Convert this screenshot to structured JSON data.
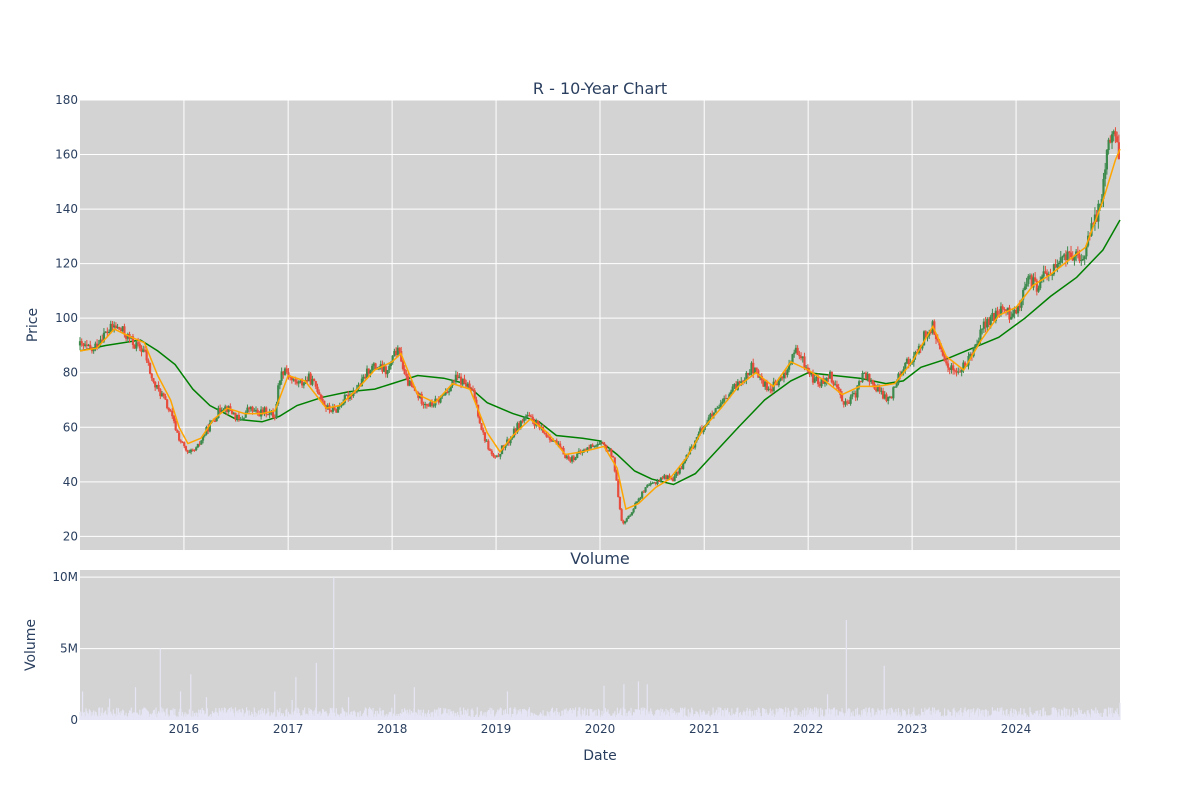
{
  "chart_data": [
    {
      "type": "candlestick",
      "title": "R - 10-Year Chart",
      "xlabel": "",
      "ylabel": "Price",
      "ylim": [
        15,
        180
      ],
      "yticks": [
        20,
        40,
        60,
        80,
        100,
        120,
        140,
        160,
        180
      ],
      "xlim": [
        "2015-01-01",
        "2024-12-31"
      ],
      "xticks": [
        "2016",
        "2017",
        "2018",
        "2019",
        "2020",
        "2021",
        "2022",
        "2023",
        "2024"
      ],
      "grid": true,
      "legend": "none",
      "colors": {
        "up": "#3d8a4d",
        "down": "#e74c3c",
        "ma_short": "#ffa500",
        "ma_long": "#008000",
        "background": "#d3d3d3",
        "grid": "#ffffff"
      },
      "price_path": [
        [
          "2015-01-01",
          90
        ],
        [
          "2015-02-15",
          88
        ],
        [
          "2015-03-15",
          93
        ],
        [
          "2015-05-01",
          97
        ],
        [
          "2015-06-01",
          95
        ],
        [
          "2015-07-15",
          90
        ],
        [
          "2015-08-15",
          88
        ],
        [
          "2015-09-15",
          76
        ],
        [
          "2015-10-15",
          72
        ],
        [
          "2015-11-15",
          65
        ],
        [
          "2015-12-15",
          56
        ],
        [
          "2016-01-15",
          50
        ],
        [
          "2016-02-15",
          52
        ],
        [
          "2016-03-15",
          58
        ],
        [
          "2016-04-15",
          63
        ],
        [
          "2016-05-15",
          68
        ],
        [
          "2016-06-15",
          66
        ],
        [
          "2016-07-15",
          62
        ],
        [
          "2016-08-15",
          67
        ],
        [
          "2016-09-15",
          65
        ],
        [
          "2016-10-15",
          66
        ],
        [
          "2016-11-15",
          64
        ],
        [
          "2016-12-01",
          78
        ],
        [
          "2016-12-20",
          82
        ],
        [
          "2017-01-15",
          77
        ],
        [
          "2017-02-15",
          76
        ],
        [
          "2017-03-15",
          78
        ],
        [
          "2017-04-15",
          74
        ],
        [
          "2017-05-15",
          67
        ],
        [
          "2017-06-15",
          66
        ],
        [
          "2017-07-15",
          70
        ],
        [
          "2017-08-15",
          73
        ],
        [
          "2017-09-15",
          76
        ],
        [
          "2017-10-15",
          82
        ],
        [
          "2017-11-15",
          82
        ],
        [
          "2017-12-15",
          80
        ],
        [
          "2018-01-15",
          88
        ],
        [
          "2018-02-01",
          86
        ],
        [
          "2018-02-15",
          78
        ],
        [
          "2018-03-15",
          74
        ],
        [
          "2018-04-15",
          70
        ],
        [
          "2018-05-15",
          68
        ],
        [
          "2018-06-15",
          70
        ],
        [
          "2018-07-15",
          74
        ],
        [
          "2018-08-15",
          78
        ],
        [
          "2018-09-15",
          76
        ],
        [
          "2018-10-15",
          72
        ],
        [
          "2018-11-15",
          58
        ],
        [
          "2018-12-15",
          50
        ],
        [
          "2019-01-01",
          48
        ],
        [
          "2019-01-20",
          52
        ],
        [
          "2019-02-15",
          55
        ],
        [
          "2019-03-15",
          60
        ],
        [
          "2019-04-15",
          64
        ],
        [
          "2019-05-15",
          62
        ],
        [
          "2019-06-15",
          58
        ],
        [
          "2019-07-15",
          56
        ],
        [
          "2019-08-15",
          52
        ],
        [
          "2019-09-15",
          48
        ],
        [
          "2019-10-15",
          50
        ],
        [
          "2019-11-15",
          52
        ],
        [
          "2019-12-15",
          54
        ],
        [
          "2020-01-15",
          53
        ],
        [
          "2020-02-15",
          50
        ],
        [
          "2020-03-01",
          38
        ],
        [
          "2020-03-20",
          24
        ],
        [
          "2020-04-15",
          28
        ],
        [
          "2020-05-15",
          34
        ],
        [
          "2020-06-15",
          38
        ],
        [
          "2020-07-15",
          40
        ],
        [
          "2020-08-15",
          42
        ],
        [
          "2020-09-15",
          41
        ],
        [
          "2020-10-15",
          46
        ],
        [
          "2020-11-15",
          52
        ],
        [
          "2020-12-15",
          58
        ],
        [
          "2021-01-15",
          63
        ],
        [
          "2021-02-15",
          66
        ],
        [
          "2021-03-15",
          70
        ],
        [
          "2021-04-15",
          74
        ],
        [
          "2021-05-15",
          78
        ],
        [
          "2021-06-15",
          82
        ],
        [
          "2021-07-15",
          78
        ],
        [
          "2021-08-15",
          74
        ],
        [
          "2021-09-15",
          76
        ],
        [
          "2021-10-15",
          80
        ],
        [
          "2021-11-15",
          88
        ],
        [
          "2021-12-15",
          84
        ],
        [
          "2022-01-15",
          78
        ],
        [
          "2022-02-15",
          76
        ],
        [
          "2022-03-15",
          80
        ],
        [
          "2022-04-15",
          74
        ],
        [
          "2022-05-15",
          68
        ],
        [
          "2022-06-15",
          72
        ],
        [
          "2022-07-15",
          80
        ],
        [
          "2022-08-15",
          76
        ],
        [
          "2022-09-15",
          72
        ],
        [
          "2022-10-15",
          70
        ],
        [
          "2022-11-15",
          80
        ],
        [
          "2022-12-15",
          84
        ],
        [
          "2023-01-15",
          86
        ],
        [
          "2023-02-15",
          94
        ],
        [
          "2023-03-15",
          97
        ],
        [
          "2023-04-15",
          86
        ],
        [
          "2023-05-15",
          82
        ],
        [
          "2023-06-15",
          80
        ],
        [
          "2023-07-15",
          84
        ],
        [
          "2023-08-15",
          92
        ],
        [
          "2023-09-15",
          98
        ],
        [
          "2023-10-15",
          100
        ],
        [
          "2023-11-15",
          104
        ],
        [
          "2023-12-15",
          100
        ],
        [
          "2024-01-15",
          106
        ],
        [
          "2024-02-15",
          114
        ],
        [
          "2024-03-15",
          112
        ],
        [
          "2024-04-15",
          116
        ],
        [
          "2024-05-15",
          118
        ],
        [
          "2024-06-15",
          122
        ],
        [
          "2024-07-15",
          124
        ],
        [
          "2024-08-15",
          120
        ],
        [
          "2024-09-15",
          130
        ],
        [
          "2024-10-15",
          140
        ],
        [
          "2024-11-01",
          148
        ],
        [
          "2024-11-15",
          162
        ],
        [
          "2024-12-01",
          170
        ],
        [
          "2024-12-15",
          165
        ],
        [
          "2024-12-31",
          158
        ]
      ],
      "ma_short_path": [
        [
          "2015-01-01",
          88
        ],
        [
          "2015-03-01",
          89
        ],
        [
          "2015-05-01",
          96
        ],
        [
          "2015-07-01",
          93
        ],
        [
          "2015-08-15",
          91
        ],
        [
          "2015-10-01",
          79
        ],
        [
          "2015-11-15",
          70
        ],
        [
          "2015-12-15",
          60
        ],
        [
          "2016-01-15",
          54
        ],
        [
          "2016-03-01",
          56
        ],
        [
          "2016-04-15",
          63
        ],
        [
          "2016-06-01",
          67
        ],
        [
          "2016-08-01",
          65
        ],
        [
          "2016-10-01",
          65
        ],
        [
          "2016-11-15",
          66
        ],
        [
          "2017-01-01",
          79
        ],
        [
          "2017-03-01",
          77
        ],
        [
          "2017-05-15",
          67
        ],
        [
          "2017-07-01",
          68
        ],
        [
          "2017-09-01",
          74
        ],
        [
          "2017-11-01",
          81
        ],
        [
          "2018-01-01",
          84
        ],
        [
          "2018-02-01",
          87
        ],
        [
          "2018-04-01",
          72
        ],
        [
          "2018-06-01",
          69
        ],
        [
          "2018-08-01",
          76
        ],
        [
          "2018-10-01",
          74
        ],
        [
          "2018-12-01",
          58
        ],
        [
          "2019-01-15",
          51
        ],
        [
          "2019-03-01",
          57
        ],
        [
          "2019-05-01",
          63
        ],
        [
          "2019-07-01",
          58
        ],
        [
          "2019-09-01",
          50
        ],
        [
          "2019-11-01",
          51
        ],
        [
          "2020-01-15",
          53
        ],
        [
          "2020-03-01",
          45
        ],
        [
          "2020-04-01",
          30
        ],
        [
          "2020-05-15",
          32
        ],
        [
          "2020-07-15",
          38
        ],
        [
          "2020-09-01",
          41
        ],
        [
          "2020-11-01",
          49
        ],
        [
          "2021-01-01",
          60
        ],
        [
          "2021-03-01",
          67
        ],
        [
          "2021-05-01",
          75
        ],
        [
          "2021-07-01",
          80
        ],
        [
          "2021-09-01",
          75
        ],
        [
          "2021-11-01",
          84
        ],
        [
          "2022-01-01",
          81
        ],
        [
          "2022-03-01",
          77
        ],
        [
          "2022-05-01",
          72
        ],
        [
          "2022-07-01",
          75
        ],
        [
          "2022-09-01",
          75
        ],
        [
          "2022-11-01",
          76
        ],
        [
          "2023-01-01",
          84
        ],
        [
          "2023-03-15",
          97
        ],
        [
          "2023-05-01",
          86
        ],
        [
          "2023-07-01",
          81
        ],
        [
          "2023-09-01",
          92
        ],
        [
          "2023-11-01",
          101
        ],
        [
          "2024-01-01",
          104
        ],
        [
          "2024-03-01",
          112
        ],
        [
          "2024-05-01",
          116
        ],
        [
          "2024-07-01",
          121
        ],
        [
          "2024-09-01",
          126
        ],
        [
          "2024-11-01",
          143
        ],
        [
          "2024-12-15",
          158
        ],
        [
          "2024-12-31",
          162
        ]
      ],
      "ma_long_path": [
        [
          "2015-01-01",
          88
        ],
        [
          "2015-04-01",
          90
        ],
        [
          "2015-08-01",
          92
        ],
        [
          "2015-10-01",
          88
        ],
        [
          "2015-12-01",
          83
        ],
        [
          "2016-02-01",
          74
        ],
        [
          "2016-04-01",
          68
        ],
        [
          "2016-07-01",
          63
        ],
        [
          "2016-10-01",
          62
        ],
        [
          "2016-12-01",
          64
        ],
        [
          "2017-02-01",
          68
        ],
        [
          "2017-05-01",
          71
        ],
        [
          "2017-08-01",
          73
        ],
        [
          "2017-11-01",
          74
        ],
        [
          "2018-01-01",
          76
        ],
        [
          "2018-04-01",
          79
        ],
        [
          "2018-07-01",
          78
        ],
        [
          "2018-09-15",
          76
        ],
        [
          "2018-12-01",
          69
        ],
        [
          "2019-03-01",
          65
        ],
        [
          "2019-06-01",
          62
        ],
        [
          "2019-08-01",
          57
        ],
        [
          "2019-11-01",
          56
        ],
        [
          "2020-01-01",
          55
        ],
        [
          "2020-03-01",
          50
        ],
        [
          "2020-05-01",
          44
        ],
        [
          "2020-07-01",
          41
        ],
        [
          "2020-09-15",
          39
        ],
        [
          "2020-12-01",
          43
        ],
        [
          "2021-02-01",
          50
        ],
        [
          "2021-05-01",
          60
        ],
        [
          "2021-08-01",
          70
        ],
        [
          "2021-11-01",
          77
        ],
        [
          "2022-01-01",
          80
        ],
        [
          "2022-04-01",
          79
        ],
        [
          "2022-07-01",
          78
        ],
        [
          "2022-10-01",
          76
        ],
        [
          "2022-12-01",
          77
        ],
        [
          "2023-02-01",
          82
        ],
        [
          "2023-05-01",
          85
        ],
        [
          "2023-08-01",
          89
        ],
        [
          "2023-11-01",
          93
        ],
        [
          "2024-02-01",
          100
        ],
        [
          "2024-05-01",
          108
        ],
        [
          "2024-08-01",
          115
        ],
        [
          "2024-11-01",
          125
        ],
        [
          "2024-12-31",
          136
        ]
      ]
    },
    {
      "type": "bar",
      "title": "Volume",
      "xlabel": "Date",
      "ylabel": "Volume",
      "ylim": [
        0,
        10500000
      ],
      "yticks": [
        {
          "value": 0,
          "label": "0"
        },
        {
          "value": 5000000,
          "label": "5M"
        },
        {
          "value": 10000000,
          "label": "10M"
        }
      ],
      "baseline_volume": 500000,
      "color": "#e5e5f5",
      "spikes": [
        [
          "2015-01-10",
          2000000
        ],
        [
          "2015-04-15",
          1500000
        ],
        [
          "2015-07-15",
          2300000
        ],
        [
          "2015-10-10",
          5000000
        ],
        [
          "2015-12-20",
          2000000
        ],
        [
          "2016-01-25",
          3200000
        ],
        [
          "2016-03-20",
          1600000
        ],
        [
          "2016-11-15",
          2000000
        ],
        [
          "2017-01-15",
          1400000
        ],
        [
          "2017-01-28",
          3000000
        ],
        [
          "2017-04-10",
          4000000
        ],
        [
          "2017-06-10",
          10000000
        ],
        [
          "2017-08-01",
          1600000
        ],
        [
          "2018-01-10",
          1800000
        ],
        [
          "2018-03-20",
          2300000
        ],
        [
          "2019-02-10",
          2000000
        ],
        [
          "2020-01-15",
          2400000
        ],
        [
          "2020-03-25",
          2500000
        ],
        [
          "2020-05-15",
          2700000
        ],
        [
          "2020-06-15",
          2500000
        ],
        [
          "2022-03-10",
          1800000
        ],
        [
          "2022-05-15",
          7000000
        ],
        [
          "2022-09-25",
          3800000
        ],
        [
          "2024-12-31",
          1200000
        ]
      ]
    }
  ]
}
